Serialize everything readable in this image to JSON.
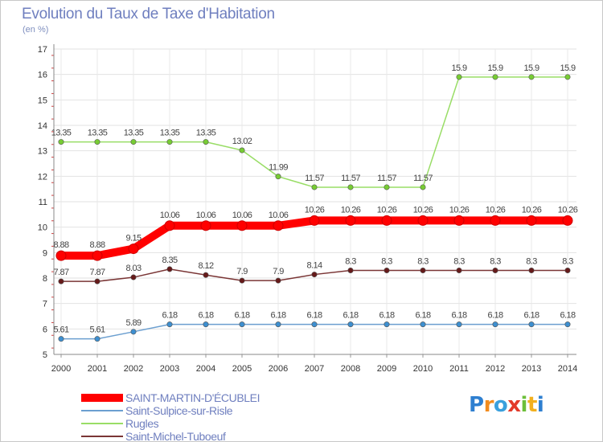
{
  "chart_data": {
    "type": "line",
    "title": "Evolution du Taux de Taxe d'Habitation",
    "subtitle": "(en %)",
    "x": [
      "2000",
      "2001",
      "2002",
      "2003",
      "2004",
      "2005",
      "2006",
      "2007",
      "2008",
      "2009",
      "2010",
      "2011",
      "2012",
      "2013",
      "2014"
    ],
    "ylim": [
      5,
      17
    ],
    "yticks": [
      "5",
      "6",
      "7",
      "8",
      "9",
      "10",
      "11",
      "12",
      "13",
      "14",
      "15",
      "16",
      "17"
    ],
    "grid": true,
    "legend_position": "bottom-left",
    "series": [
      {
        "name": "SAINT-MARTIN-D'ÉCUBLEI",
        "color": "#ff0000",
        "marker": "#ff0000",
        "values": [
          8.88,
          8.88,
          9.15,
          10.06,
          10.06,
          10.06,
          10.06,
          10.26,
          10.26,
          10.26,
          10.26,
          10.26,
          10.26,
          10.26,
          10.26
        ],
        "labels": [
          "8.88",
          "8.88",
          "9.15",
          "10.06",
          "10.06",
          "10.06",
          "10.06",
          "10.26",
          "10.26",
          "10.26",
          "10.26",
          "10.26",
          "10.26",
          "10.26",
          "10.26"
        ]
      },
      {
        "name": "Saint-Sulpice-sur-Risle",
        "color": "#6b9fd0",
        "marker": "#3d8fd0",
        "values": [
          5.61,
          5.61,
          5.89,
          6.18,
          6.18,
          6.18,
          6.18,
          6.18,
          6.18,
          6.18,
          6.18,
          6.18,
          6.18,
          6.18,
          6.18
        ],
        "labels": [
          "5.61",
          "5.61",
          "5.89",
          "6.18",
          "6.18",
          "6.18",
          "6.18",
          "6.18",
          "6.18",
          "6.18",
          "6.18",
          "6.18",
          "6.18",
          "6.18",
          "6.18"
        ]
      },
      {
        "name": "Rugles",
        "color": "#99dd66",
        "marker": "#77cc33",
        "values": [
          13.35,
          13.35,
          13.35,
          13.35,
          13.35,
          13.02,
          11.99,
          11.57,
          11.57,
          11.57,
          11.57,
          15.9,
          15.9,
          15.9,
          15.9
        ],
        "labels": [
          "13.35",
          "13.35",
          "13.35",
          "13.35",
          "13.35",
          "13.02",
          "11.99",
          "11.57",
          "11.57",
          "11.57",
          "11.57",
          "15.9",
          "15.9",
          "15.9",
          "15.9"
        ]
      },
      {
        "name": "Saint-Michel-Tuboeuf",
        "color": "#7a3535",
        "marker": "#661a1a",
        "values": [
          7.87,
          7.87,
          8.03,
          8.35,
          8.12,
          7.9,
          7.9,
          8.14,
          8.3,
          8.3,
          8.3,
          8.3,
          8.3,
          8.3,
          8.3
        ],
        "labels": [
          "7.87",
          "7.87",
          "8.03",
          "8.35",
          "8.12",
          "7.9",
          "7.9",
          "8.14",
          "8.3",
          "8.3",
          "8.3",
          "8.3",
          "8.3",
          "8.3",
          "8.3"
        ]
      }
    ]
  },
  "logo": {
    "letters": [
      "P",
      "r",
      "o",
      "x",
      "i",
      "t",
      "i"
    ],
    "colors": [
      "#2e7fd0",
      "#f28c1e",
      "#3aa0dd",
      "#e33a2a",
      "#6cbf3a",
      "#f2b01e",
      "#2e7fd0"
    ]
  }
}
